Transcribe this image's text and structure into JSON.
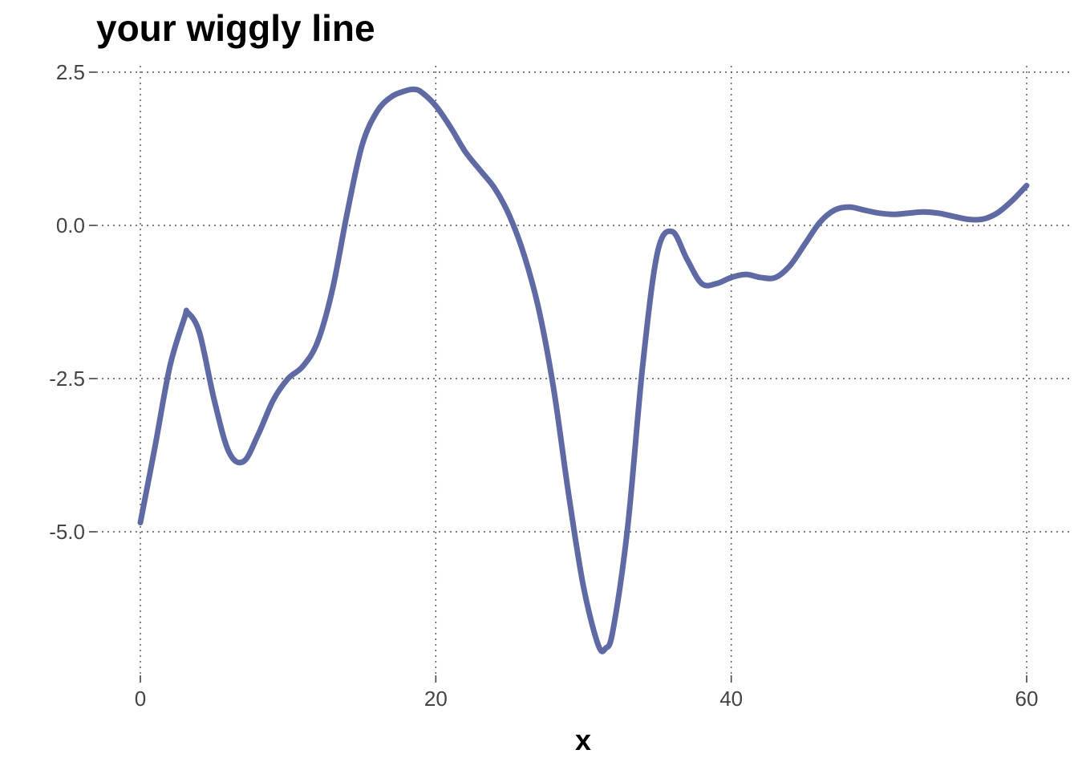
{
  "chart_data": {
    "type": "line",
    "title": "your wiggly line",
    "xlabel": "x",
    "ylabel": "",
    "xlim": [
      0,
      60
    ],
    "ylim": [
      -7,
      2.5
    ],
    "x_ticks": [
      0,
      20,
      40,
      60
    ],
    "x_tick_labels": [
      "0",
      "20",
      "40",
      "60"
    ],
    "y_ticks": [
      2.5,
      0,
      -2.5,
      -5
    ],
    "y_tick_labels": [
      "2.5",
      "0.0",
      "-2.5",
      "-5.0"
    ],
    "grid": true,
    "legend": "none",
    "series": [
      {
        "color": "#5f6aa5",
        "x": [
          0,
          1,
          2,
          3,
          3.2,
          4,
          5,
          6,
          7,
          8,
          9,
          10,
          11,
          12,
          13,
          14,
          15,
          16,
          17,
          18,
          18.5,
          19,
          20,
          21,
          22,
          23,
          24,
          25,
          26,
          27,
          28,
          29,
          30,
          31,
          31.5,
          32,
          33,
          34,
          35,
          36,
          37,
          38,
          39,
          40,
          41,
          42,
          43,
          44,
          45,
          46,
          47,
          48,
          49,
          50,
          51,
          52,
          53,
          54,
          55,
          56,
          57,
          58,
          59,
          60
        ],
        "y": [
          -4.85,
          -3.6,
          -2.3,
          -1.5,
          -1.42,
          -1.75,
          -2.85,
          -3.7,
          -3.85,
          -3.4,
          -2.85,
          -2.5,
          -2.3,
          -1.9,
          -1.05,
          0.2,
          1.3,
          1.85,
          2.1,
          2.2,
          2.22,
          2.18,
          1.95,
          1.6,
          1.2,
          0.9,
          0.6,
          0.15,
          -0.5,
          -1.4,
          -2.7,
          -4.4,
          -5.9,
          -6.85,
          -6.9,
          -6.6,
          -4.9,
          -2.3,
          -0.45,
          -0.1,
          -0.55,
          -0.95,
          -0.95,
          -0.85,
          -0.8,
          -0.85,
          -0.85,
          -0.65,
          -0.3,
          0.05,
          0.25,
          0.3,
          0.25,
          0.2,
          0.18,
          0.2,
          0.22,
          0.2,
          0.15,
          0.1,
          0.1,
          0.2,
          0.4,
          0.65
        ]
      }
    ]
  }
}
